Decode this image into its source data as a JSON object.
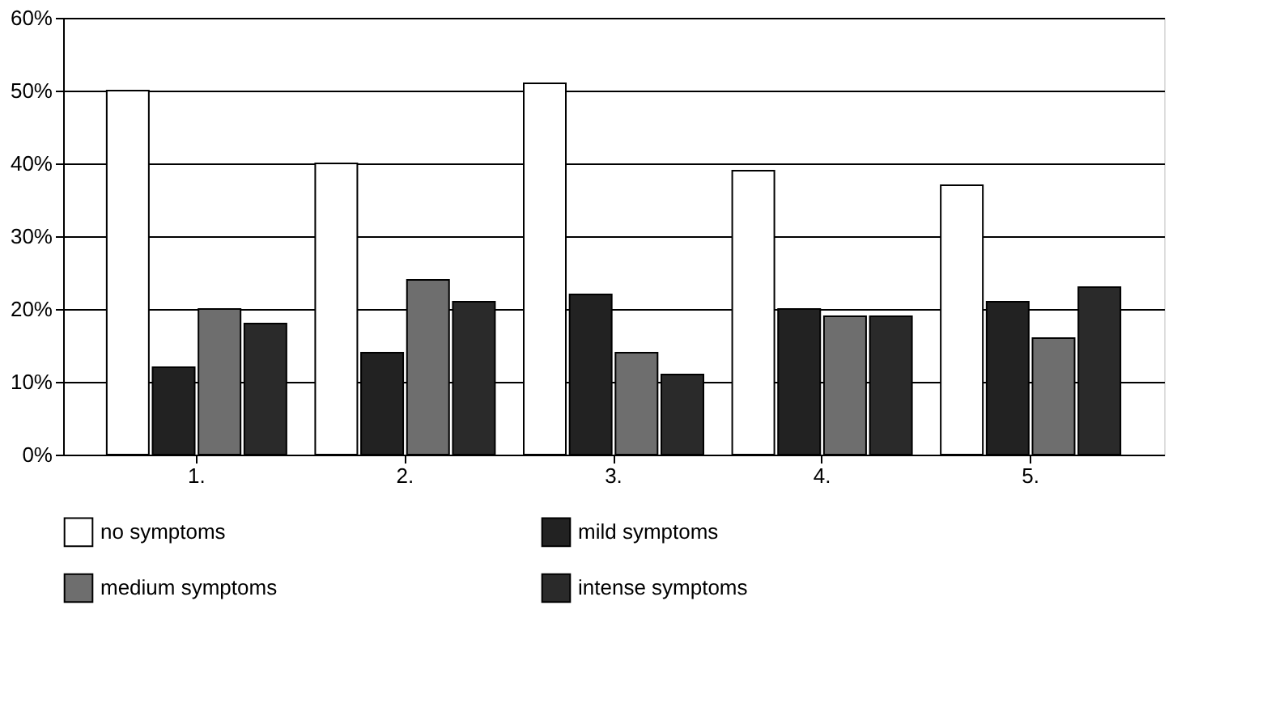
{
  "chart_data": {
    "type": "bar",
    "categories": [
      "1.",
      "2.",
      "3.",
      "4.",
      "5."
    ],
    "series": [
      {
        "name": "no symptoms",
        "color": "#ffffff",
        "values": [
          50,
          40,
          51,
          39,
          37
        ]
      },
      {
        "name": "mild symptoms",
        "color": "#222222",
        "values": [
          12,
          14,
          22,
          20,
          21
        ]
      },
      {
        "name": "medium symptoms",
        "color": "#6e6e6e",
        "values": [
          20,
          24,
          14,
          19,
          16
        ]
      },
      {
        "name": "intense symptoms",
        "color": "#2a2a2a",
        "values": [
          18,
          21,
          11,
          19,
          23
        ]
      }
    ],
    "ylim": [
      0,
      60
    ],
    "yticks": [
      {
        "value": 0,
        "label": "0%"
      },
      {
        "value": 10,
        "label": "10%"
      },
      {
        "value": 20,
        "label": "20%"
      },
      {
        "value": 30,
        "label": "30%"
      },
      {
        "value": 40,
        "label": "40%"
      },
      {
        "value": 50,
        "label": "50%"
      },
      {
        "value": 60,
        "label": "60%"
      }
    ],
    "grid": "y",
    "legend": "bottom"
  }
}
